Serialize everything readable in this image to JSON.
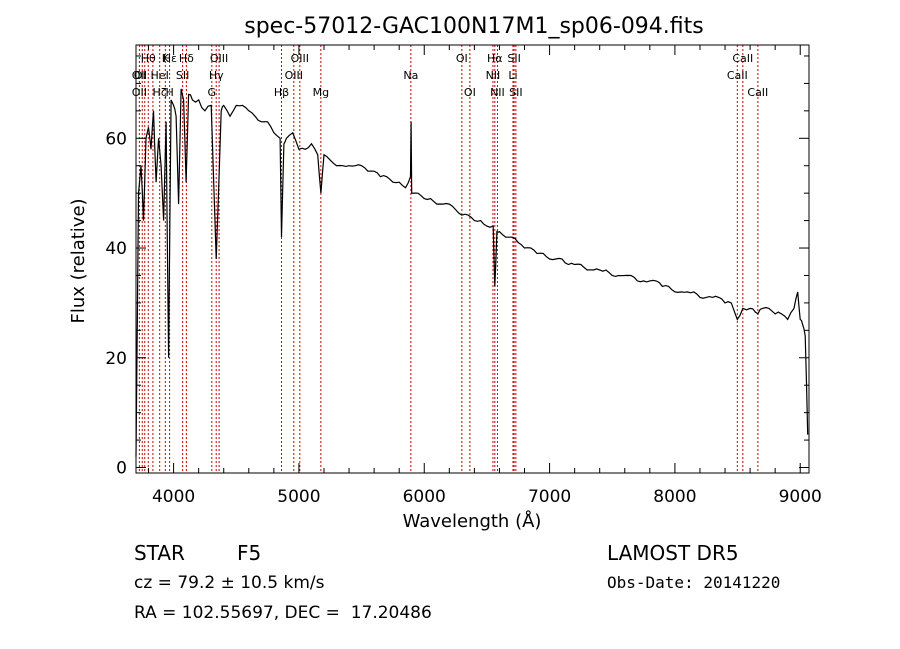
{
  "chart_data": {
    "type": "line",
    "title": "spec-57012-GAC100N17M1_sp06-094.fits",
    "xlabel": "Wavelength (Å)",
    "ylabel": "Flux (relative)",
    "xlim": [
      3700,
      9070
    ],
    "ylim": [
      -1,
      77
    ],
    "xticks": [
      4000,
      5000,
      6000,
      7000,
      8000,
      9000
    ],
    "yticks": [
      0,
      20,
      40,
      60
    ],
    "grid": false,
    "series": [
      {
        "x": [
          3700,
          3720,
          3740,
          3760,
          3780,
          3800,
          3820,
          3840,
          3860,
          3880,
          3900,
          3920,
          3940,
          3960,
          3980,
          4000,
          4020,
          4040,
          4060,
          4080,
          4100,
          4120,
          4150,
          4200,
          4250,
          4300,
          4340,
          4380,
          4400,
          4450,
          4500,
          4550,
          4600,
          4650,
          4700,
          4750,
          4800,
          4850,
          4861,
          4880,
          4900,
          4950,
          5000,
          5050,
          5100,
          5150,
          5175,
          5200,
          5250,
          5300,
          5350,
          5400,
          5450,
          5500,
          5550,
          5600,
          5650,
          5700,
          5750,
          5800,
          5850,
          5890,
          5895,
          5900,
          5950,
          6000,
          6050,
          6100,
          6150,
          6200,
          6250,
          6300,
          6350,
          6400,
          6450,
          6500,
          6550,
          6563,
          6580,
          6600,
          6650,
          6700,
          6750,
          6800,
          6850,
          6900,
          6950,
          7000,
          7050,
          7100,
          7150,
          7200,
          7250,
          7300,
          7350,
          7400,
          7450,
          7500,
          7550,
          7600,
          7650,
          7700,
          7750,
          7800,
          7850,
          7900,
          7950,
          8000,
          8050,
          8100,
          8150,
          8200,
          8250,
          8300,
          8350,
          8400,
          8450,
          8498,
          8542,
          8600,
          8662,
          8700,
          8750,
          8800,
          8850,
          8900,
          8950,
          8980,
          9000,
          9020,
          9040,
          9060
        ],
        "y": [
          2,
          50,
          55,
          45,
          60,
          62,
          58,
          65,
          52,
          60,
          55,
          45,
          63,
          20,
          67,
          66,
          64,
          48,
          69,
          67,
          52,
          68,
          67,
          67,
          65,
          66,
          38,
          65,
          66,
          64,
          66,
          66,
          65,
          64,
          63,
          63,
          61,
          60,
          42,
          59,
          60,
          61,
          58,
          58,
          59,
          57,
          50,
          57,
          56,
          55,
          55,
          55,
          55,
          55,
          54,
          54,
          53,
          53,
          52,
          52,
          51,
          53,
          63,
          50,
          50,
          49,
          49,
          48,
          48,
          48,
          47,
          46,
          46,
          45,
          45,
          44,
          44,
          33,
          43,
          43,
          42,
          42,
          41,
          40,
          40,
          39,
          39,
          38,
          38,
          38,
          37,
          37,
          37,
          36,
          36,
          36,
          36,
          35,
          35,
          35,
          35,
          34,
          34,
          34,
          34,
          33,
          33,
          32,
          32,
          32,
          32,
          31,
          31,
          31,
          31,
          30,
          30,
          27,
          29,
          29,
          28,
          29,
          29,
          28,
          28,
          27,
          29,
          32,
          27,
          26,
          24,
          6
        ]
      }
    ],
    "line_labels": [
      {
        "text": "Hε",
        "wl": 3970,
        "row": 1
      },
      {
        "text": "OII",
        "wl": 3727,
        "row": 2
      },
      {
        "text": "Hζ",
        "wl": 3889,
        "row": 3
      },
      {
        "text": "Hθ",
        "wl": 3798,
        "row": 1
      },
      {
        "text": "K",
        "wl": 3934,
        "row": 1
      },
      {
        "text": "Hδ",
        "wl": 4102,
        "row": 1
      },
      {
        "text": "OI",
        "wl": 3730,
        "row": 2
      },
      {
        "text": "HeI",
        "wl": 3889,
        "row": 2
      },
      {
        "text": "SII",
        "wl": 4072,
        "row": 2
      },
      {
        "text": "OII",
        "wl": 3727,
        "row": 3
      },
      {
        "text": "H",
        "wl": 3968,
        "row": 3
      },
      {
        "text": "OIII",
        "wl": 4363,
        "row": 1
      },
      {
        "text": "Hγ",
        "wl": 4340,
        "row": 2
      },
      {
        "text": "G",
        "wl": 4305,
        "row": 3
      },
      {
        "text": "OIII",
        "wl": 5007,
        "row": 1
      },
      {
        "text": "OIII",
        "wl": 4959,
        "row": 2
      },
      {
        "text": "Hβ",
        "wl": 4861,
        "row": 3
      },
      {
        "text": "Mg",
        "wl": 5175,
        "row": 3
      },
      {
        "text": "Na",
        "wl": 5893,
        "row": 2
      },
      {
        "text": "OI",
        "wl": 6300,
        "row": 1
      },
      {
        "text": "OI",
        "wl": 6364,
        "row": 3
      },
      {
        "text": "Hα",
        "wl": 6563,
        "row": 1
      },
      {
        "text": "NII",
        "wl": 6548,
        "row": 2
      },
      {
        "text": "NII",
        "wl": 6584,
        "row": 3
      },
      {
        "text": "SII",
        "wl": 6717,
        "row": 1
      },
      {
        "text": "Li",
        "wl": 6708,
        "row": 2
      },
      {
        "text": "SII",
        "wl": 6731,
        "row": 3
      },
      {
        "text": "CaII",
        "wl": 8542,
        "row": 1
      },
      {
        "text": "CaII",
        "wl": 8498,
        "row": 2
      },
      {
        "text": "CaII",
        "wl": 8662,
        "row": 3
      }
    ],
    "line_marker_wavelengths": [
      3727,
      3750,
      3770,
      3798,
      3835,
      3889,
      3934,
      3968,
      4072,
      4102,
      4305,
      4340,
      4363,
      4861,
      4959,
      5007,
      5175,
      5893,
      6300,
      6364,
      6548,
      6563,
      6584,
      6708,
      6717,
      6731,
      8498,
      8542,
      8662
    ],
    "line_marker_color": "#cc0000",
    "spectrum_color": "#000000"
  },
  "info": {
    "class_label": "STAR",
    "subclass": "F5",
    "survey": "LAMOST DR5",
    "cz": "cz = 79.2 ± 10.5 km/s",
    "obs_date": "Obs-Date: 20141220",
    "coords": "RA = 102.55697, DEC =  17.20486"
  }
}
